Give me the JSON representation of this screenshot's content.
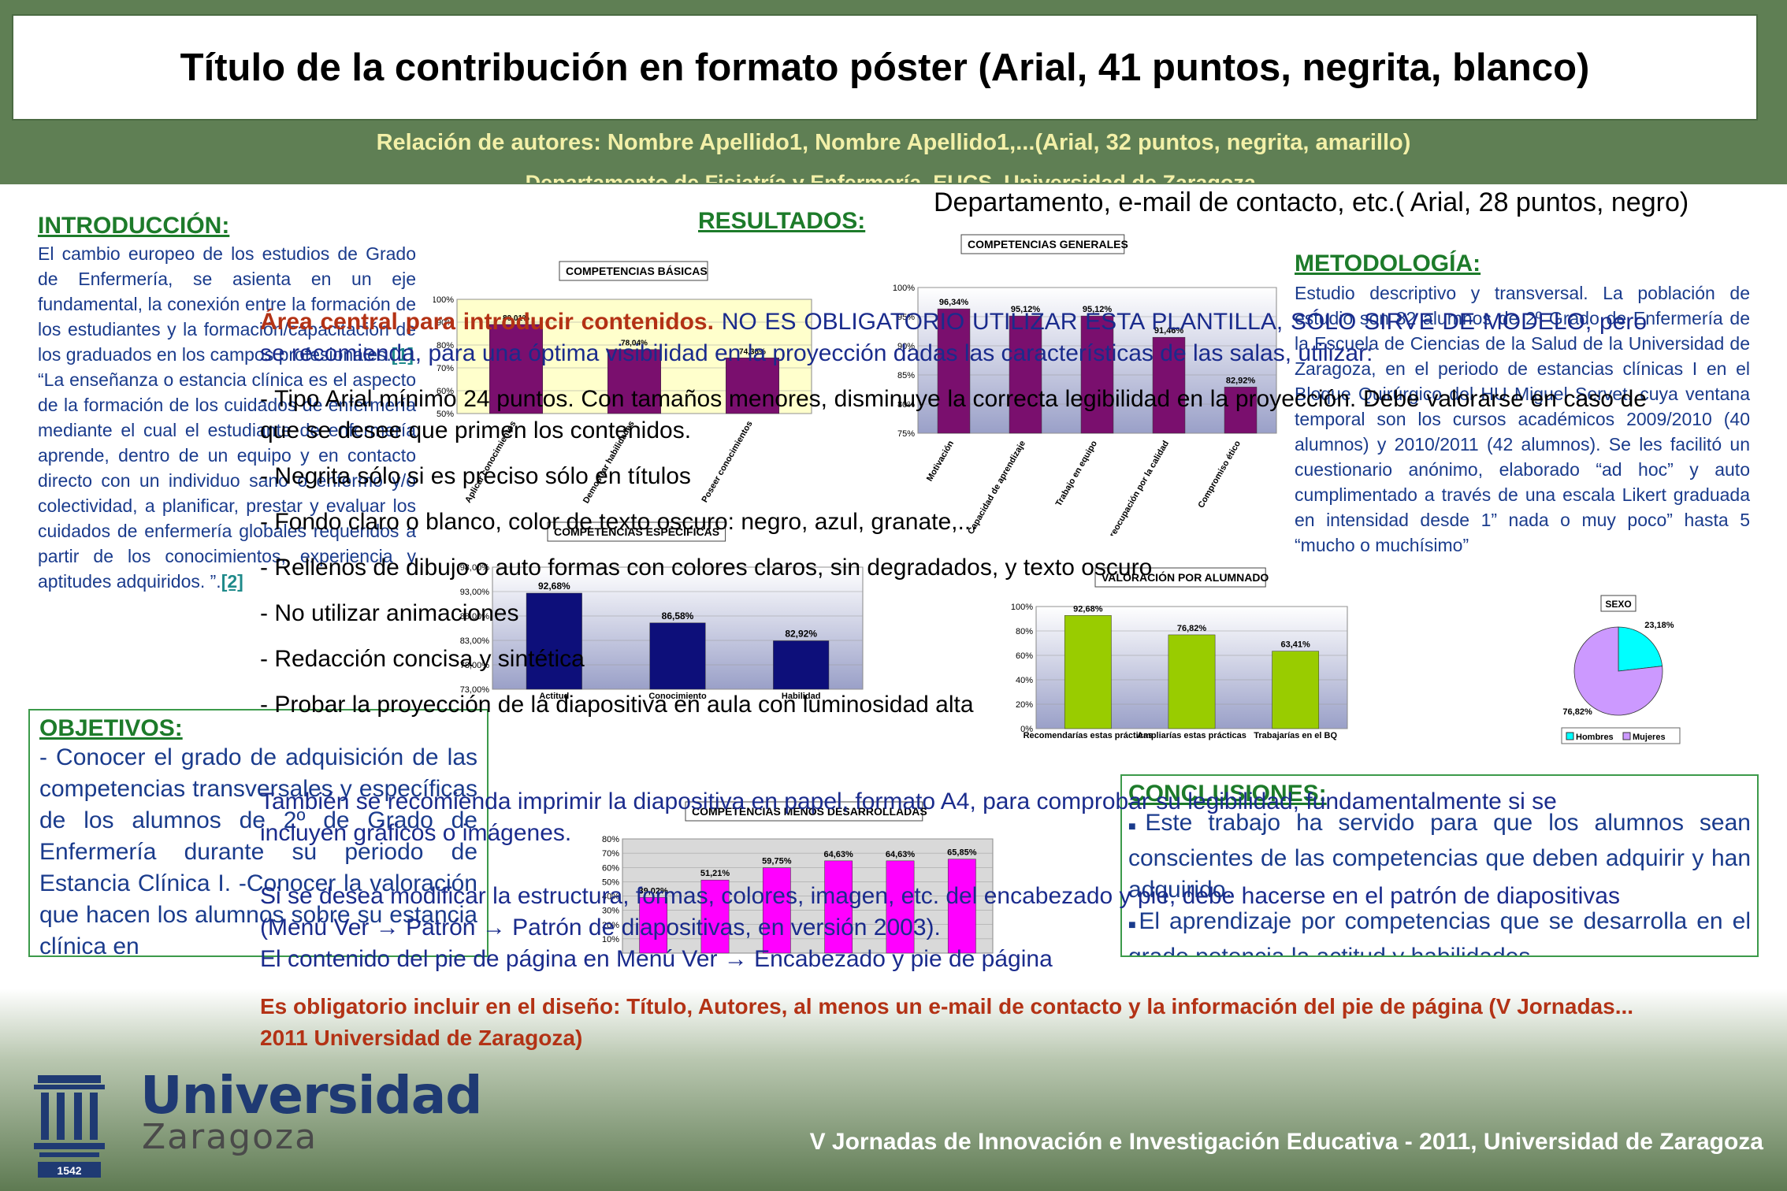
{
  "header": {
    "title": "Título de la contribución en formato póster (Arial, 41 puntos, negrita, blanco)",
    "authors": "Relación de autores: Nombre Apellido1, Nombre Apellido1,...(Arial, 32 puntos, negrita, amarillo)",
    "department_ghost": "Departamento de Fisiatría y Enfermería. EUCS. Universidad de Zaragoza.",
    "department_contact": "Departamento, e-mail de contacto, etc.( Arial, 28 puntos, negro)"
  },
  "introduccion": {
    "heading": "INTRODUCCIÓN:",
    "text1": "El cambio europeo de los estudios de Grado de Enfermería, se asienta en un eje fundamental, la conexión entre la formación de los estudiantes y la formación/capacitación de los graduados en los campos profesionales.",
    "ref1": "[1]",
    "text2": "“La enseñanza o estancia clínica es el aspecto de la formación de los cuidados de enfermería mediante el cual el estudiante de enfermería aprende, dentro de un equipo y en contacto directo con un individuo sano o enfermo y/o colectividad, a planificar, prestar y evaluar los cuidados de enfermería globales requeridos a partir de los conocimientos, experiencia y aptitudes adquiridos. ”.",
    "ref2": "[2]"
  },
  "objetivos": {
    "heading": "OBJETIVOS:",
    "text": "- Conocer el grado de adquisición de las competencias transversales y específicas de los alumnos de 2º de Grado de Enfermería durante su periodo de Estancia Clínica I. -Conocer la valoración que hacen los alumnos sobre su estancia clínica en"
  },
  "resultados": {
    "heading": "RESULTADOS:"
  },
  "metodologia": {
    "heading": "METODOLOGÍA:",
    "text": "Estudio descriptivo y transversal. La población de estudio son 82 alumnos de 2º Grado de Enfermería de la Escuela de Ciencias de la Salud de la Universidad de Zaragoza, en el periodo de estancias clínicas I en el Bloque Quirúrgico del HU Miguel Servet, cuya ventana temporal son los cursos académicos 2009/2010 (40 alumnos) y 2010/2011 (42 alumnos). Se les facilitó un cuestionario anónimo, elaborado “ad hoc” y auto cumplimentado a través de una escala Likert graduada en intensidad desde 1” nada o muy poco” hasta 5 “mucho o muchísimo”"
  },
  "conclusiones": {
    "heading": "CONCLUSIONES:",
    "item1": "Este trabajo ha servido para que los alumnos sean conscientes de las competencias que deben adquirir y han adquirido.",
    "item2": "El aprendizaje por competencias que se desarrolla en el grado potencia la actitud y habilidades"
  },
  "overlay": {
    "lead_red": "Área central para introducir contenidos.",
    "lead_blue": "NO ES OBLIGATORIO UTILIZAR ESTA PLANTILLA, SÓLO SIRVE DE MODELO, pero se recomienda, para una óptima visibilidad en la proyección dadas las características de las salas, utilizar:",
    "line1": "- Tipo Arial mínimo 24 puntos. Con tamaños menores, disminuye la correcta legibilidad en la proyección. Debe valorarse en caso de que se desee que primen los contenidos.",
    "line2": "- Negrita sólo si es preciso sólo en títulos",
    "line3": "- Fondo claro o blanco, color de texto oscuro: negro, azul, granate,...",
    "line4": "- Rellenos de dibujo o auto formas con colores claros, sin degradados, y texto oscuro",
    "line5": "- No utilizar animaciones",
    "line6": "- Redacción concisa y sintética",
    "line7": "- Probar la proyección de la diapositiva en aula con luminosidad alta",
    "print_note": "También se recomienda imprimir la diapositiva en papel, formato A4, para comprobar su legibilidad, fundamentalmente si se incluyen gráficos o imágenes.",
    "modify1": "Si se desea modificar la estructura, formas, colores, imagen, etc. del encabezado y pie, debe hacerse en el patrón de diapositivas (Menú Ver",
    "modify2": "Patrón",
    "modify3": "Patrón de diapositivas, en versión 2003).",
    "footer1": "El contenido del pie de página en Menú Ver",
    "footer2": "Encabezado y pie de página",
    "arrow": "→"
  },
  "mandatory": "Es obligatorio incluir en el diseño: Título, Autores, al menos un e-mail de contacto y la información del pie de página (V Jornadas... 2011 Universidad de Zaragoza)",
  "footer": {
    "text": "V Jornadas de Innovación e Investigación Educativa - 2011, Universidad de Zaragoza",
    "logo_line1": "Universidad",
    "logo_line2": "Zaragoza",
    "logo_year": "1542"
  },
  "colors": {
    "band": "#5f7f54",
    "purple_bar": "#7a0f6e",
    "navy_bar": "#0d0f7a",
    "green_bar": "#99cc00",
    "magenta_bar": "#ff00ff",
    "cyan_slice": "#00ffff",
    "lilac_slice": "#cc99ff"
  },
  "chart_data": [
    {
      "type": "bar",
      "title": "COMPETENCIAS BÁSICAS",
      "categories": [
        "Aplicar conocimientos",
        "Demostrar habilidades",
        "Poseer conocimientos"
      ],
      "values": [
        89.01,
        78.04,
        74.38
      ],
      "value_labels": [
        "89,01%",
        "78,04%",
        "74,38%"
      ],
      "ylim": [
        50,
        100
      ],
      "yticks": [
        "50%",
        "60%",
        "70%",
        "80%",
        "90%",
        "100%"
      ]
    },
    {
      "type": "bar",
      "title": "COMPETENCIAS GENERALES",
      "categories": [
        "Motivación",
        "Capacidad de aprendizaje",
        "Trabajo en equipo",
        "Preocupación por la calidad",
        "Compromiso ético"
      ],
      "values": [
        96.34,
        95.12,
        95.12,
        91.46,
        82.92
      ],
      "value_labels": [
        "96,34%",
        "95,12%",
        "95,12%",
        "91,46%",
        "82,92%"
      ],
      "ylim": [
        75,
        100
      ],
      "yticks": [
        "75%",
        "80%",
        "85%",
        "90%",
        "95%",
        "100%"
      ]
    },
    {
      "type": "bar",
      "title": "COMPETENCIAS ESPECIFICAS",
      "categories": [
        "Actitud",
        "Conocimiento",
        "Habilidad"
      ],
      "values": [
        92.68,
        86.58,
        82.92
      ],
      "value_labels": [
        "92,68%",
        "86,58%",
        "82,92%"
      ],
      "ylim": [
        73,
        98
      ],
      "yticks": [
        "73,00%",
        "78,00%",
        "83,00%",
        "88,00%",
        "93,00%",
        "98,00%"
      ]
    },
    {
      "type": "bar",
      "title": "VALORACIÓN POR ALUMNADO",
      "categories": [
        "Recomendarías estas prácticas",
        "Ampliarías estas prácticas",
        "Trabajarías en el BQ"
      ],
      "values": [
        92.68,
        76.82,
        63.41
      ],
      "value_labels": [
        "92,68%",
        "76,82%",
        "63,41%"
      ],
      "ylim": [
        0,
        100
      ],
      "yticks": [
        "0%",
        "20%",
        "40%",
        "60%",
        "80%",
        "100%"
      ]
    },
    {
      "type": "bar",
      "title": "COMPETENCIAS MENOS DESARROLLADAS",
      "categories": [
        "",
        "",
        "",
        "",
        "",
        ""
      ],
      "values": [
        39.02,
        51.21,
        59.75,
        64.63,
        64.63,
        65.85
      ],
      "value_labels": [
        "39,02%",
        "51,21%",
        "59,75%",
        "64,63%",
        "64,63%",
        "65,85%"
      ],
      "ylim": [
        0,
        80
      ],
      "yticks": [
        "10%",
        "20%",
        "30%",
        "40%",
        "50%",
        "60%",
        "70%",
        "80%"
      ]
    },
    {
      "type": "pie",
      "title": "SEXO",
      "categories": [
        "Hombres",
        "Mujeres"
      ],
      "values": [
        23.18,
        76.82
      ],
      "value_labels": [
        "23,18%",
        "76,82%"
      ]
    }
  ]
}
